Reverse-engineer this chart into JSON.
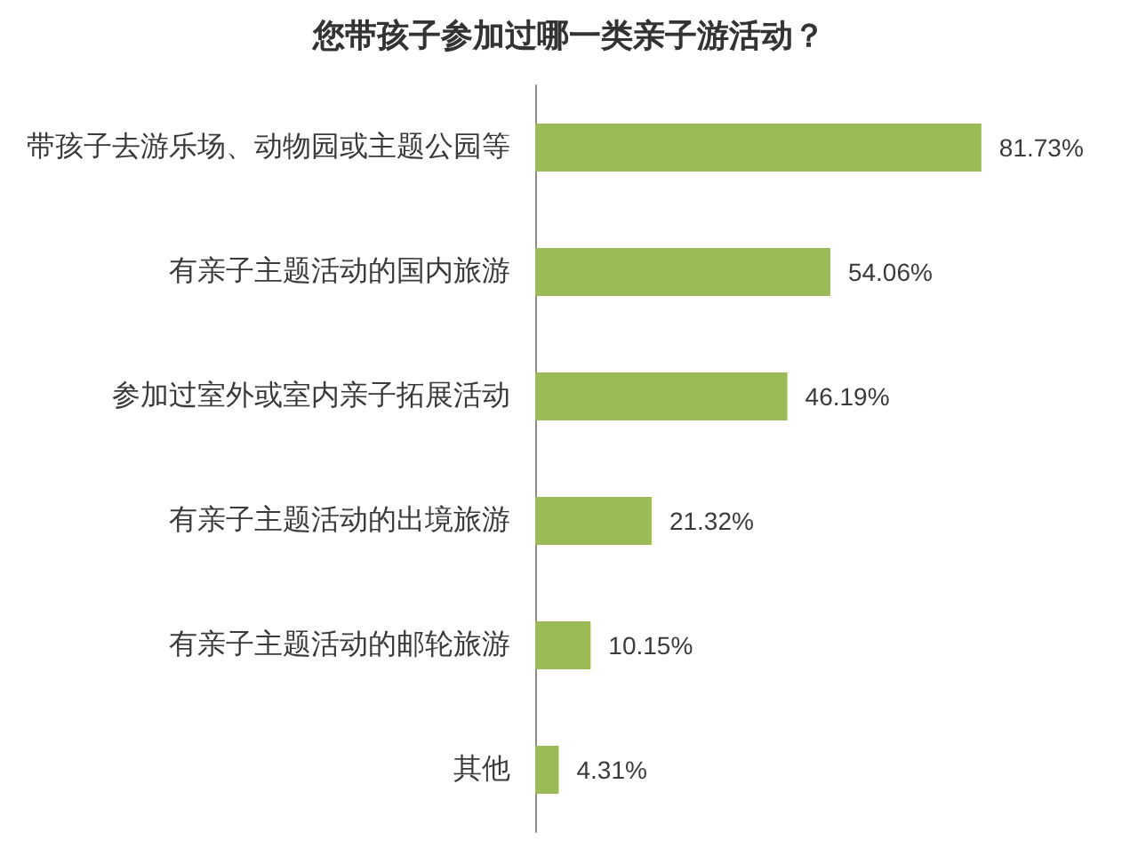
{
  "chart_data": {
    "type": "bar",
    "orientation": "horizontal",
    "title": "您带孩子参加过哪一类亲子游活动？",
    "categories": [
      "带孩子去游乐场、动物园或主题公园等",
      "有亲子主题活动的国内旅游",
      "参加过室外或室内亲子拓展活动",
      "有亲子主题活动的出境旅游",
      "有亲子主题活动的邮轮旅游",
      "其他"
    ],
    "values": [
      81.73,
      54.06,
      46.19,
      21.32,
      10.15,
      4.31
    ],
    "value_labels": [
      "81.73%",
      "54.06%",
      "46.19%",
      "21.32%",
      "10.15%",
      "4.31%"
    ],
    "color": "#9bbb59",
    "grid": false,
    "tick_labels": "y"
  }
}
